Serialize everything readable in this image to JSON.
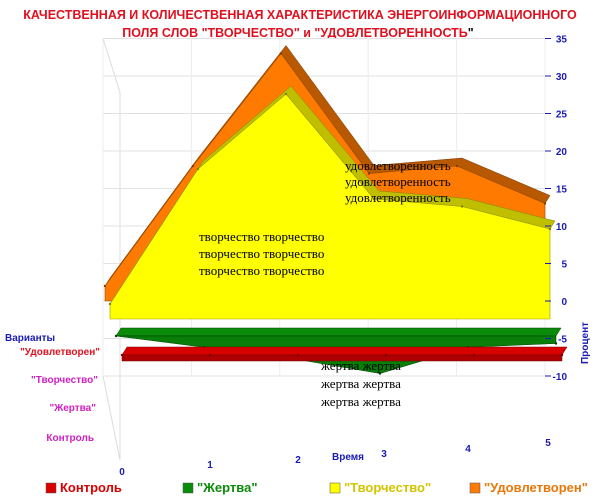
{
  "chart_data": {
    "type": "area",
    "title_line1": "КАЧЕСТВЕННАЯ И КОЛИЧЕСТВЕННАЯ ХАРАКТЕРИСТИКА ЭНЕРГОИНФОРМАЦИОННОГО",
    "title_line2_a": "ПОЛЯ СЛОВ \"ТВОРЧЕСТВО\" и \"УДОВЛЕТВОРЕННОСТЬ",
    "title_line2_b": "\"",
    "xlabel": "Время",
    "ylabel": "Процент",
    "depth_axis_label": "Варианты",
    "x": [
      0,
      1,
      2,
      3,
      4,
      5
    ],
    "x_ticks": [
      "0",
      "1",
      "2",
      "3",
      "4",
      "5"
    ],
    "ylim": [
      -10,
      35
    ],
    "y_ticks": [
      "35",
      "30",
      "25",
      "20",
      "15",
      "10",
      "5",
      "0",
      "-5",
      "-10"
    ],
    "grid": true,
    "legend_position": "bottom",
    "series": [
      {
        "name": "Контроль",
        "values": [
          0,
          0,
          0,
          0,
          0,
          0
        ],
        "color": "#d90000"
      },
      {
        "name": "\"Жертва\"",
        "values": [
          0,
          -1.5,
          -3,
          -5,
          -1.5,
          -1
        ],
        "color": "#0a8c0a"
      },
      {
        "name": "\"Творчество\"",
        "values": [
          2,
          20,
          30,
          16,
          15,
          12
        ],
        "color": "#ffff00"
      },
      {
        "name": "\"Удовлетворен\"",
        "values": [
          2,
          18,
          33,
          17,
          18,
          13
        ],
        "color": "#ff7a00"
      }
    ],
    "depth_labels": [
      {
        "text": "\"Удовлетворен\"",
        "color": "#e0101f"
      },
      {
        "text": "\"Творчество\"",
        "color": "#d020c0"
      },
      {
        "text": "\"Жертва\"",
        "color": "#d020c0"
      },
      {
        "text": "Контроль",
        "color": "#d020c0"
      }
    ],
    "annotations": {
      "udovl": [
        "удовлетворенность",
        "удовлетворенность",
        "удовлетворенность"
      ],
      "tvor": [
        "творчество творчество",
        "творчество творчество",
        "творчество творчество"
      ],
      "zhertva": [
        "жертва жертва",
        "жертва жертва",
        "жертва жертва"
      ]
    },
    "legend": [
      {
        "label": "Контроль",
        "color": "#d90000",
        "text_color": "#d90000"
      },
      {
        "label": "\"Жертва\"",
        "color": "#0a8c0a",
        "text_color": "#0a8c0a"
      },
      {
        "label": "\"Творчество\"",
        "color": "#ffff00",
        "text_color": "#d4c400"
      },
      {
        "label": "\"Удовлетворен\"",
        "color": "#ff7a00",
        "text_color": "#e8780a"
      }
    ]
  }
}
